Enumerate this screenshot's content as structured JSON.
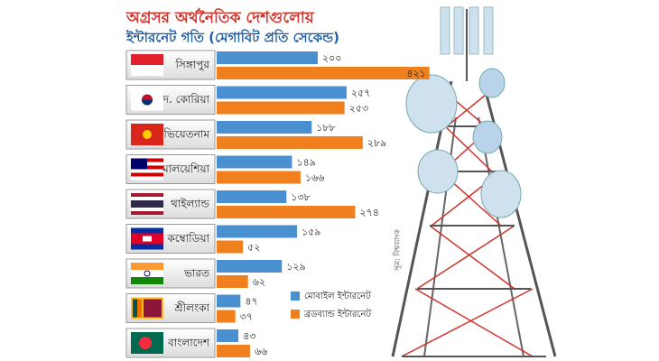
{
  "chart_data": {
    "type": "bar",
    "orientation": "horizontal",
    "title": "অগ্রসর অর্থনৈতিক দেশগুলোয়",
    "subtitle": "ইন্টারনেট গতি (মেগাবিট প্রতি সেকেন্ড)",
    "source": "সূত্র: বিশ্বব্যাংক",
    "categories": [
      "সিঙ্গাপুর",
      "দ. কোরিয়া",
      "ভিয়েতনাম",
      "মালয়েশিয়া",
      "থাইল্যান্ড",
      "কম্বোডিয়া",
      "ভারত",
      "শ্রীলংকা",
      "বাংলাদেশ"
    ],
    "series": [
      {
        "name": "মোবাইল ইন্টারনেট",
        "color": "#4a90d0",
        "values": [
          200,
          257,
          188,
          149,
          138,
          159,
          129,
          47,
          43
        ],
        "value_labels": [
          "২০০",
          "২৫৭",
          "১৮৮",
          "১৪৯",
          "১৩৮",
          "১৫৯",
          "১২৯",
          "৪৭",
          "৪৩"
        ]
      },
      {
        "name": "ব্রডব্যান্ড ইন্টারনেট",
        "color": "#f0801e",
        "values": [
          421,
          253,
          289,
          166,
          274,
          52,
          62,
          37,
          66
        ],
        "value_labels": [
          "৪২১",
          "২৫৩",
          "২৮৯",
          "১৬৬",
          "২৭৪",
          "৫২",
          "৬২",
          "৩৭",
          "৬৬"
        ]
      }
    ]
  }
}
